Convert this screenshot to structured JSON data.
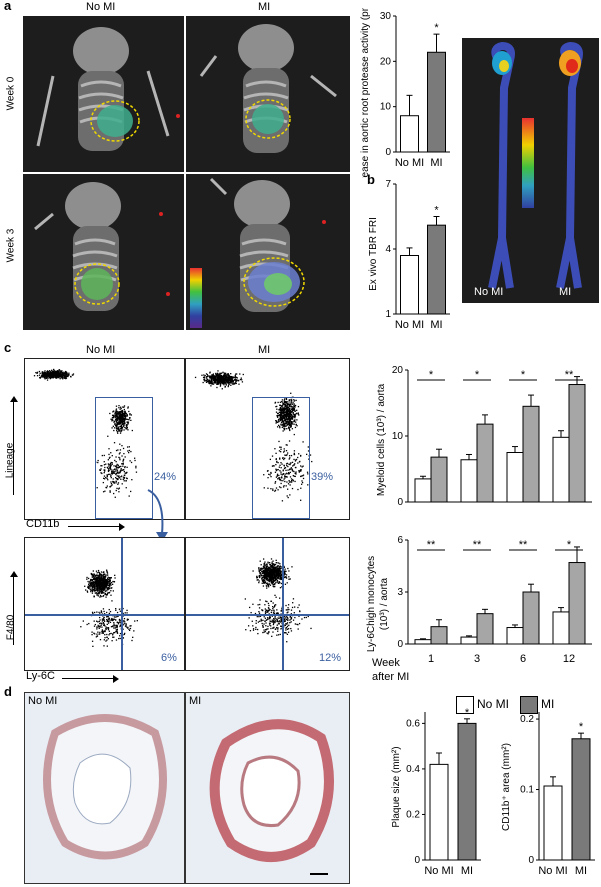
{
  "panel_letters": {
    "a": "a",
    "b": "b",
    "c": "c",
    "d": "d"
  },
  "panel_a": {
    "col_no_mi": "No MI",
    "col_mi": "MI",
    "row_week0": "Week 0",
    "row_week3": "Week 3",
    "aorta_no_mi": "No MI",
    "aorta_mi": "MI"
  },
  "panel_c": {
    "col_no_mi": "No MI",
    "col_mi": "MI",
    "lineage": "Lineage",
    "cd11b": "CD11b",
    "f480": "F4/80",
    "ly6c": "Ly-6C",
    "pct_top_nomi": "24%",
    "pct_top_mi": "39%",
    "pct_bot_nomi": "6%",
    "pct_bot_mi": "12%",
    "week_label": "Week",
    "after_label": "after MI",
    "legend_nomi": "No MI",
    "legend_mi": "MI"
  },
  "panel_d": {
    "no_mi": "No MI",
    "mi": "MI"
  },
  "colors": {
    "no_mi": "#ffffff",
    "mi_dark": "#7a7a7a",
    "mi_light": "#a6a6a6",
    "gate": "#3a5fa0",
    "ct_bg": "#1d1d1d"
  },
  "chart_data": [
    {
      "id": "a",
      "type": "bar",
      "categories": [
        "No MI",
        "MI"
      ],
      "values": [
        8,
        22
      ],
      "errors": [
        4.5,
        4
      ],
      "ylabel": "Increase in aortic root protease activity (pmol)",
      "yticks": [
        "0",
        "10",
        "20",
        "30"
      ],
      "ylim": [
        0,
        30
      ],
      "significance": [
        "*"
      ]
    },
    {
      "id": "b",
      "type": "bar",
      "categories": [
        "No MI",
        "MI"
      ],
      "values": [
        3.7,
        5.1
      ],
      "errors": [
        0.35,
        0.4
      ],
      "ylabel": "Ex vivo TBR FRI",
      "yticks": [
        "1",
        "4",
        "7"
      ],
      "ylim": [
        1,
        7
      ],
      "significance": [
        "*"
      ]
    },
    {
      "id": "c_top",
      "type": "bar",
      "categories": [
        "1",
        "3",
        "6",
        "12"
      ],
      "series": [
        {
          "name": "No MI",
          "values": [
            3.5,
            6.4,
            7.5,
            9.8
          ],
          "errors": [
            0.4,
            0.8,
            0.9,
            1.0
          ]
        },
        {
          "name": "MI",
          "values": [
            6.8,
            11.8,
            14.5,
            17.8
          ],
          "errors": [
            1.2,
            1.4,
            1.7,
            1.2
          ]
        }
      ],
      "ylabel": "Myeloid cells (10³) / aorta",
      "yticks": [
        "0",
        "10",
        "20"
      ],
      "ylim": [
        0,
        20
      ],
      "significance": [
        "*",
        "*",
        "*",
        "**"
      ]
    },
    {
      "id": "c_bottom",
      "type": "bar",
      "categories": [
        "1",
        "3",
        "6",
        "12"
      ],
      "series": [
        {
          "name": "No MI",
          "values": [
            0.25,
            0.4,
            0.95,
            1.85
          ],
          "errors": [
            0.05,
            0.07,
            0.15,
            0.25
          ]
        },
        {
          "name": "MI",
          "values": [
            1.0,
            1.75,
            3.0,
            4.7
          ],
          "errors": [
            0.4,
            0.25,
            0.45,
            0.9
          ]
        }
      ],
      "ylabel_line1": "Ly-6Chigh monocytes",
      "ylabel_line2": "(10³) / aorta",
      "yticks": [
        "0",
        "3",
        "6"
      ],
      "ylim": [
        0,
        6
      ],
      "significance": [
        "**",
        "**",
        "**",
        "*"
      ]
    },
    {
      "id": "d_left",
      "type": "bar",
      "categories": [
        "No MI",
        "MI"
      ],
      "values": [
        0.42,
        0.6
      ],
      "errors": [
        0.05,
        0.02
      ],
      "ylabel": "Plaque size (mm²)",
      "yticks": [
        "0",
        "0.2",
        "0.4",
        "0.6"
      ],
      "ylim": [
        0,
        0.65
      ],
      "significance": [
        "*"
      ]
    },
    {
      "id": "d_right",
      "type": "bar",
      "categories": [
        "No MI",
        "MI"
      ],
      "values": [
        0.105,
        0.172
      ],
      "errors": [
        0.013,
        0.008
      ],
      "ylabel": "CD11b⁺ area (mm²)",
      "yticks": [
        "0",
        "0.1",
        "0.2"
      ],
      "ylim": [
        0,
        0.21
      ],
      "significance": [
        "*"
      ]
    }
  ]
}
